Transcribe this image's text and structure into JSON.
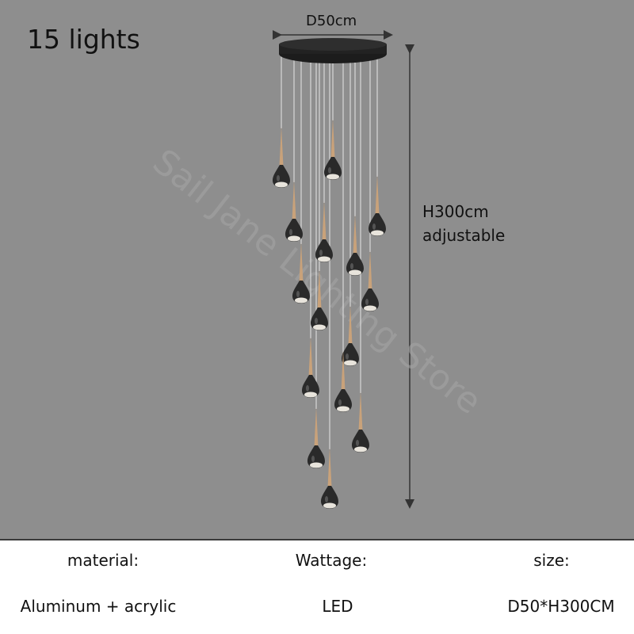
{
  "title": "15 lights",
  "dimensions": {
    "diameter": "D50cm",
    "height": "H300cm",
    "height_note": "adjustable"
  },
  "watermark": "Sail Jane Lighting Store",
  "colors": {
    "background": "#8e8e8e",
    "canopy": "#1c1c1c",
    "wood": "#c9a27a",
    "bulb": "#2a2a2a"
  },
  "specs": [
    {
      "label": "material:",
      "value": "Aluminum + acrylic"
    },
    {
      "label": "Wattage:",
      "value": "LED"
    },
    {
      "label": "size:",
      "value": "D50*H300CM"
    }
  ]
}
